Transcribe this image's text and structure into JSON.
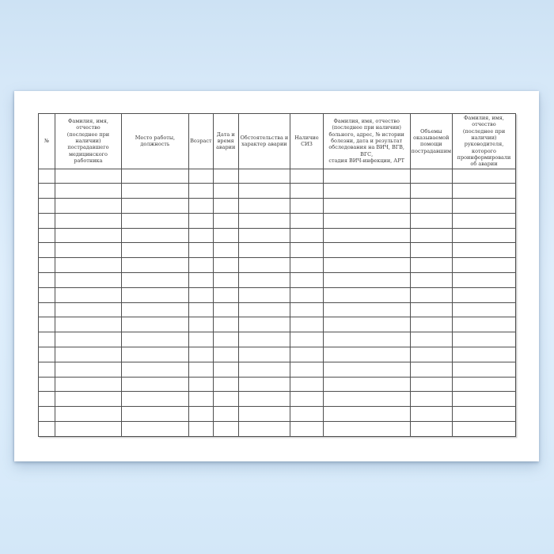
{
  "scene": {
    "background_top_color": "#cde2f4",
    "background_middle_color": "#e0effc",
    "background_bottom_color": "#d3e7f8",
    "paper_color": "#ffffff"
  },
  "document": {
    "kind": "blank accident registration journal table page",
    "language": "ru",
    "columns": [
      {
        "label": "№",
        "width_pct": 3.48
      },
      {
        "label": "Фамилия, имя, отчество\n(последнее при\nналичии)\nпострадавшего\nмедицинского\nработника",
        "width_pct": 13.92
      },
      {
        "label": "Место работы,\nдолжность",
        "width_pct": 14.09
      },
      {
        "label": "Возраст",
        "width_pct": 5.14
      },
      {
        "label": "Дата и\nвремя\nаварии",
        "width_pct": 5.25
      },
      {
        "label": "Обстоятельства и\nхарактер аварии",
        "width_pct": 10.89
      },
      {
        "label": "Наличие\nСИЗ",
        "width_pct": 6.89
      },
      {
        "label": "Фамилия, имя, отчество\n(последнее при наличии)\nбольного, адрес, № истории\nболезни, дата и результат\nобследования на ВИЧ, ВГВ, ВГС,\nстадия ВИЧ-инфекции, АРТ",
        "width_pct": 18.23
      },
      {
        "label": "Объемы\nоказываемой\nпомощи\nпострадавшим",
        "width_pct": 8.85
      },
      {
        "label": "Фамилия, имя, отчество\n(последнее при\nналичии)\nруководителя, которого\nпроинформировали\nоб аварии",
        "width_pct": 13.26
      }
    ],
    "empty_row_count": 18,
    "table_border_color": "#4f4f4f",
    "header_text_color": "#3a3a3a"
  }
}
